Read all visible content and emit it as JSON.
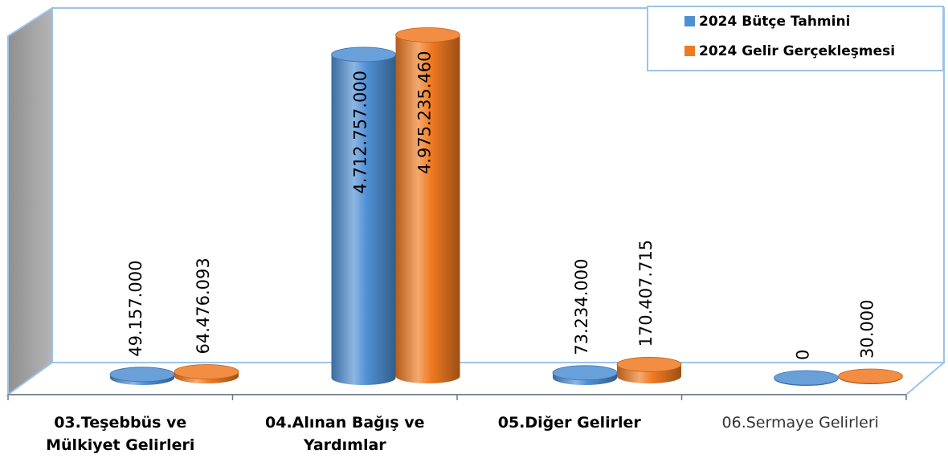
{
  "chart_data": {
    "type": "bar",
    "style": "3d-cylinder",
    "categories": [
      [
        "03.Teşebbüs ve",
        "Mülkiyet Gelirleri"
      ],
      [
        "04.Alınan Bağış ve",
        "Yardımlar"
      ],
      [
        "05.Diğer Gelirler"
      ],
      [
        "06.Sermaye Gelirleri"
      ]
    ],
    "category_bold": [
      true,
      true,
      true,
      false
    ],
    "series": [
      {
        "name": "2024 Bütçe Tahmini",
        "color": "#4f8fd4",
        "values": [
          49157000,
          4712757000,
          73234000,
          0
        ],
        "labels": [
          "49.157.000",
          "4.712.757.000",
          "73.234.000",
          "0"
        ]
      },
      {
        "name": "2024 Gelir Gerçekleşmesi",
        "color": "#f07a22",
        "values": [
          64476093,
          4975235460,
          170407715,
          30000
        ],
        "labels": [
          "64.476.093",
          "4.975.235.460",
          "170.407.715",
          "30.000"
        ]
      }
    ],
    "ylim": [
      0,
      5250000000
    ],
    "grid": false,
    "legend_position": "top-right",
    "title": "",
    "xlabel": "",
    "ylabel": ""
  }
}
